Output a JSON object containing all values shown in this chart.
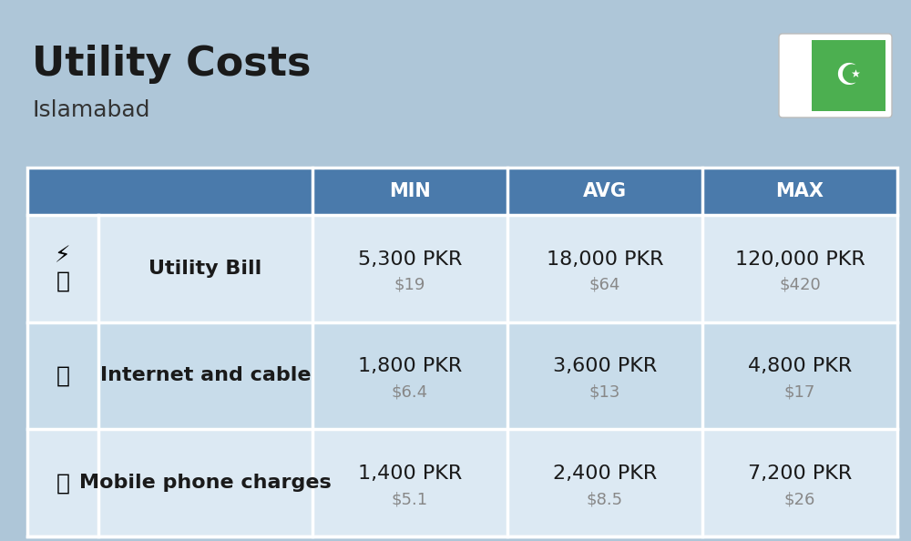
{
  "title": "Utility Costs",
  "subtitle": "Islamabad",
  "background_color": "#aec6d8",
  "header_bg_color": "#4a7aab",
  "header_text_color": "#ffffff",
  "row_bg_color_1": "#dce9f3",
  "row_bg_color_2": "#c8dcea",
  "table_border_color": "#ffffff",
  "title_fontsize": 32,
  "subtitle_fontsize": 18,
  "col_headers": [
    "MIN",
    "AVG",
    "MAX"
  ],
  "rows": [
    {
      "label": "Utility Bill",
      "min_pkr": "5,300 PKR",
      "min_usd": "$19",
      "avg_pkr": "18,000 PKR",
      "avg_usd": "$64",
      "max_pkr": "120,000 PKR",
      "max_usd": "$420"
    },
    {
      "label": "Internet and cable",
      "min_pkr": "1,800 PKR",
      "min_usd": "$6.4",
      "avg_pkr": "3,600 PKR",
      "avg_usd": "$13",
      "max_pkr": "4,800 PKR",
      "max_usd": "$17"
    },
    {
      "label": "Mobile phone charges",
      "min_pkr": "1,400 PKR",
      "min_usd": "$5.1",
      "avg_pkr": "2,400 PKR",
      "avg_usd": "$8.5",
      "max_pkr": "7,200 PKR",
      "max_usd": "$26"
    }
  ],
  "pkr_fontsize": 16,
  "usd_fontsize": 13,
  "label_fontsize": 16,
  "flag_green": "#4caf50",
  "flag_white": "#ffffff"
}
